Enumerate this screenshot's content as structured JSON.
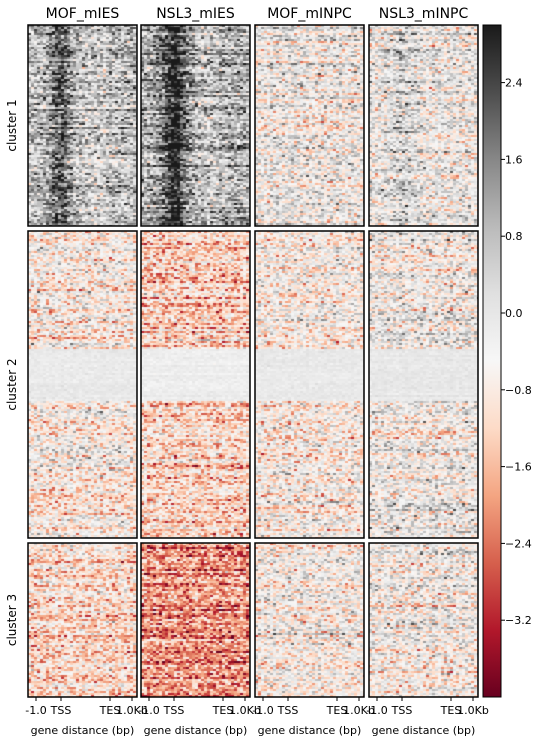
{
  "chart_data": {
    "type": "heatmap",
    "columns": [
      {
        "label": "MOF_mIES",
        "mean_by_cluster": [
          0.8,
          -0.6,
          -1.0
        ]
      },
      {
        "label": "NSL3_mIES",
        "mean_by_cluster": [
          1.0,
          -1.2,
          -2.0
        ]
      },
      {
        "label": "MOF_mINPC",
        "mean_by_cluster": [
          -0.3,
          -0.5,
          -0.4
        ]
      },
      {
        "label": "NSL3_mINPC",
        "mean_by_cluster": [
          -0.2,
          -0.3,
          -0.4
        ]
      }
    ],
    "rows": [
      {
        "label": "cluster 1"
      },
      {
        "label": "cluster 2"
      },
      {
        "label": "cluster 3"
      }
    ],
    "x_ticks": [
      "-1.0",
      "TSS",
      "TES",
      "1.0Kb"
    ],
    "xlabel": "gene distance (bp)",
    "colorbar": {
      "range": [
        -4.0,
        3.0
      ],
      "ticks": [
        2.4,
        1.6,
        0.8,
        0.0,
        -0.8,
        -1.6,
        -2.4,
        -3.2
      ],
      "tick_labels": [
        "2.4",
        "1.6",
        "0.8",
        "0.0",
        "−0.8",
        "−1.6",
        "−2.4",
        "−3.2"
      ],
      "colors": [
        "#67001f",
        "#b2182b",
        "#d6604d",
        "#f4a582",
        "#fddbc7",
        "#f7f7f7",
        "#e0e0e0",
        "#bababa",
        "#878787",
        "#4d4d4d",
        "#1a1a1a"
      ]
    }
  }
}
